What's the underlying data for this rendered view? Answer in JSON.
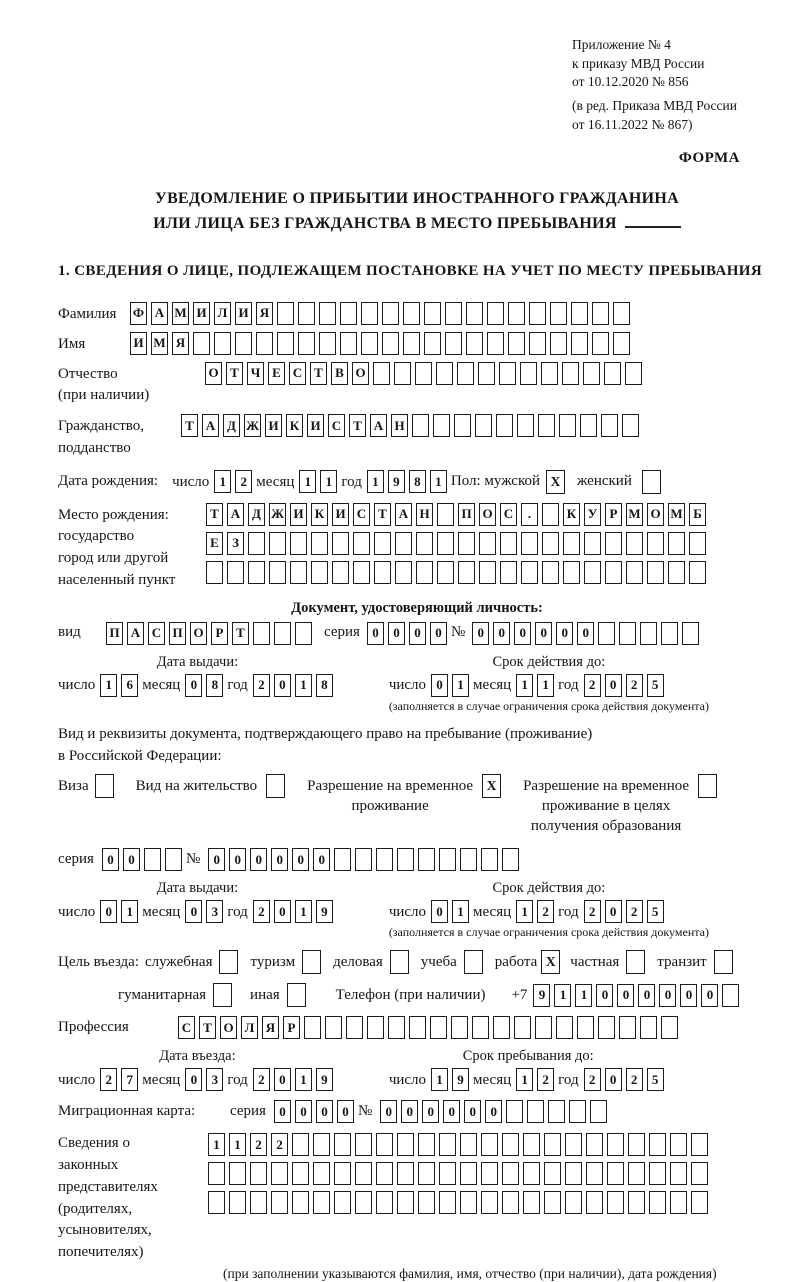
{
  "colors": {
    "paper": "#ffffff",
    "ink": "#1c1c1c"
  },
  "header": {
    "appendix_line1": "Приложение № 4",
    "appendix_line2": "к приказу МВД России",
    "appendix_line3": "от 10.12.2020 № 856",
    "edition_line1": "(в ред. Приказа МВД России",
    "edition_line2": "от 16.11.2022 № 867)",
    "form_label": "ФОРМА"
  },
  "title": {
    "line1": "УВЕДОМЛЕНИЕ О ПРИБЫТИИ ИНОСТРАННОГО ГРАЖДАНИНА",
    "line2": "ИЛИ ЛИЦА БЕЗ ГРАЖДАНСТВА В МЕСТО ПРЕБЫВАНИЯ"
  },
  "section1_heading": "1. СВЕДЕНИЯ О ЛИЦЕ, ПОДЛЕЖАЩЕМ ПОСТАНОВКЕ НА УЧЕТ ПО МЕСТУ ПРЕБЫВАНИЯ",
  "person": {
    "surname": {
      "label": "Фамилия",
      "boxes": {
        "chars": "ФАМИЛИЯ",
        "total": 24
      }
    },
    "name": {
      "label": "Имя",
      "boxes": {
        "chars": "ИМЯ",
        "total": 24
      }
    },
    "patronymic": {
      "label_line1": "Отчество",
      "label_line2": "(при наличии)",
      "boxes": {
        "chars": "ОТЧЕСТВО",
        "total": 21
      }
    },
    "citizenship": {
      "label_line1": "Гражданство,",
      "label_line2": "подданство",
      "boxes": {
        "chars": "ТАДЖИКИСТАН",
        "total": 22
      }
    },
    "birth_date": {
      "label": "Дата рождения:",
      "day_label": "число",
      "day": "12",
      "month_label": "месяц",
      "month": "11",
      "year_label": "год",
      "year": "1981"
    },
    "gender": {
      "label": "Пол: мужской",
      "male_checked": true,
      "female_label": "женский",
      "female_checked": false
    },
    "birth_place": {
      "label_line1": "Место рождения:",
      "label_line2": "государство",
      "label_line3": "город или другой",
      "label_line4": "населенный пункт",
      "row1": {
        "chars": "ТАДЖИКИСТАН ПОС. КУРМОМБ",
        "total": 24
      },
      "row2": {
        "chars": "ЕЗ",
        "total": 24
      },
      "row3": {
        "chars": "",
        "total": 24
      }
    }
  },
  "identity_doc": {
    "heading": "Документ, удостоверяющий личность:",
    "kind_label": "вид",
    "kind_boxes": {
      "chars": "ПАСПОРТ",
      "total": 10
    },
    "series_label": "серия",
    "series_boxes": {
      "chars": "0000",
      "total": 4
    },
    "number_label": "№",
    "number_boxes": {
      "chars": "000000",
      "total": 11
    },
    "issue_heading": "Дата выдачи:",
    "issue": {
      "day_label": "число",
      "day": "16",
      "month_label": "месяц",
      "month": "08",
      "year_label": "год",
      "year": "2018"
    },
    "validity_heading": "Срок действия до:",
    "validity": {
      "day_label": "число",
      "day": "01",
      "month_label": "месяц",
      "month": "11",
      "year_label": "год",
      "year": "2025"
    },
    "validity_note": "(заполняется в случае ограничения срока действия документа)"
  },
  "residence_doc": {
    "intro_line1": "Вид и реквизиты документа, подтверждающего право на пребывание (проживание)",
    "intro_line2": "в Российской Федерации:",
    "visa_label": "Виза",
    "visa_checked": false,
    "residence_permit_label": "Вид на жительство",
    "residence_permit_checked": false,
    "temp_permit_line1": "Разрешение на временное",
    "temp_permit_line2": "проживание",
    "temp_permit_checked": true,
    "edu_permit_line1": "Разрешение на временное",
    "edu_permit_line2": "проживание в целях",
    "edu_permit_line3": "получения образования",
    "edu_permit_checked": false,
    "series_label": "серия",
    "series_boxes": {
      "chars": "00",
      "total": 4
    },
    "number_label": "№",
    "number_boxes": {
      "chars": "000000",
      "total": 15
    },
    "issue_heading": "Дата выдачи:",
    "issue": {
      "day_label": "число",
      "day": "01",
      "month_label": "месяц",
      "month": "03",
      "year_label": "год",
      "year": "2019"
    },
    "validity_heading": "Срок действия до:",
    "validity": {
      "day_label": "число",
      "day": "01",
      "month_label": "месяц",
      "month": "12",
      "year_label": "год",
      "year": "2025"
    },
    "validity_note": "(заполняется в случае ограничения срока действия документа)"
  },
  "visit": {
    "purpose_label": "Цель въезда:",
    "purposes_row1": [
      {
        "label": "служебная",
        "checked": false
      },
      {
        "label": "туризм",
        "checked": false
      },
      {
        "label": "деловая",
        "checked": false
      },
      {
        "label": "учеба",
        "checked": false
      },
      {
        "label": "работа",
        "checked": true
      },
      {
        "label": "частная",
        "checked": false
      },
      {
        "label": "транзит",
        "checked": false
      }
    ],
    "purposes_row2": [
      {
        "label": "гуманитарная",
        "checked": false
      },
      {
        "label": "иная",
        "checked": false
      }
    ],
    "phone_label": "Телефон (при наличии)",
    "phone_prefix": "+7",
    "phone_boxes": {
      "chars": "911000000",
      "total": 10
    },
    "profession_label": "Профессия",
    "profession_boxes": {
      "chars": "СТОЛЯР",
      "total": 24
    },
    "entry_heading": "Дата въезда:",
    "entry": {
      "day_label": "число",
      "day": "27",
      "month_label": "месяц",
      "month": "03",
      "year_label": "год",
      "year": "2019"
    },
    "stay_heading": "Срок пребывания до:",
    "stay": {
      "day_label": "число",
      "day": "19",
      "month_label": "месяц",
      "month": "12",
      "year_label": "год",
      "year": "2025"
    }
  },
  "migration_card": {
    "label": "Миграционная карта:",
    "series_label": "серия",
    "series_boxes": {
      "chars": "0000",
      "total": 4
    },
    "number_label": "№",
    "number_boxes": {
      "chars": "000000",
      "total": 11
    }
  },
  "representatives": {
    "label_line1": "Сведения о",
    "label_line2": "законных",
    "label_line3": "представителях",
    "label_line4": "(родителях,",
    "label_line5": "усыновителях,",
    "label_line6": "попечителях)",
    "row1": {
      "chars": "1122",
      "total": 24
    },
    "row2": {
      "chars": "",
      "total": 24
    },
    "row3": {
      "chars": "",
      "total": 24
    },
    "note": "(при заполнении указываются фамилия, имя, отчество (при наличии), дата рождения)"
  }
}
